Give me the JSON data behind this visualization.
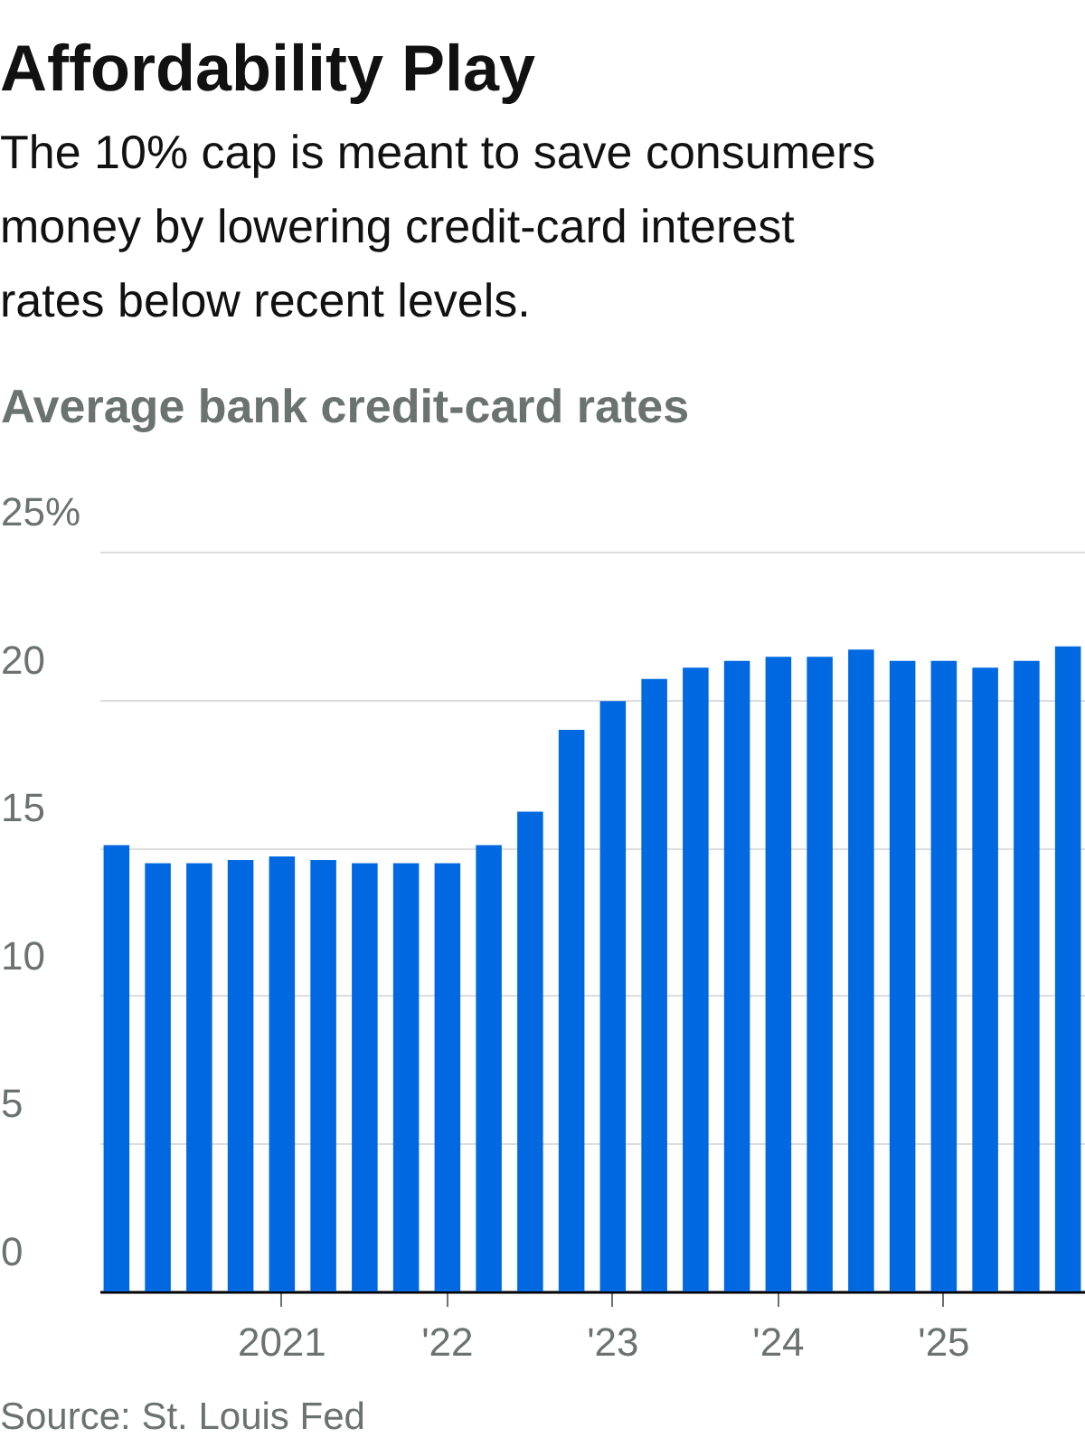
{
  "chart_data": {
    "type": "bar",
    "title": "Affordability Play",
    "subtitle": "The 10% cap is meant to save consumers money by lowering credit-card interest rates below recent levels.",
    "ylabel": "Average bank credit-card rates",
    "categories": [
      null,
      null,
      null,
      null,
      "2021",
      null,
      null,
      null,
      "'22",
      null,
      null,
      null,
      "'23",
      null,
      null,
      null,
      "'24",
      null,
      null,
      null,
      "'25",
      null,
      null,
      null
    ],
    "values": [
      15.08,
      14.47,
      14.47,
      14.58,
      14.7,
      14.58,
      14.47,
      14.47,
      14.47,
      15.08,
      16.21,
      18.98,
      19.95,
      20.7,
      21.08,
      21.31,
      21.45,
      21.45,
      21.69,
      21.31,
      21.31,
      21.08,
      21.31,
      21.8
    ],
    "color": "#0069e1",
    "ylim": [
      0,
      25
    ],
    "yticks": [
      0,
      5,
      10,
      15,
      20,
      {
        "value": 25,
        "label": "25%"
      }
    ],
    "grid": "y",
    "annotations": [
      "Source: St. Louis Fed"
    ]
  }
}
